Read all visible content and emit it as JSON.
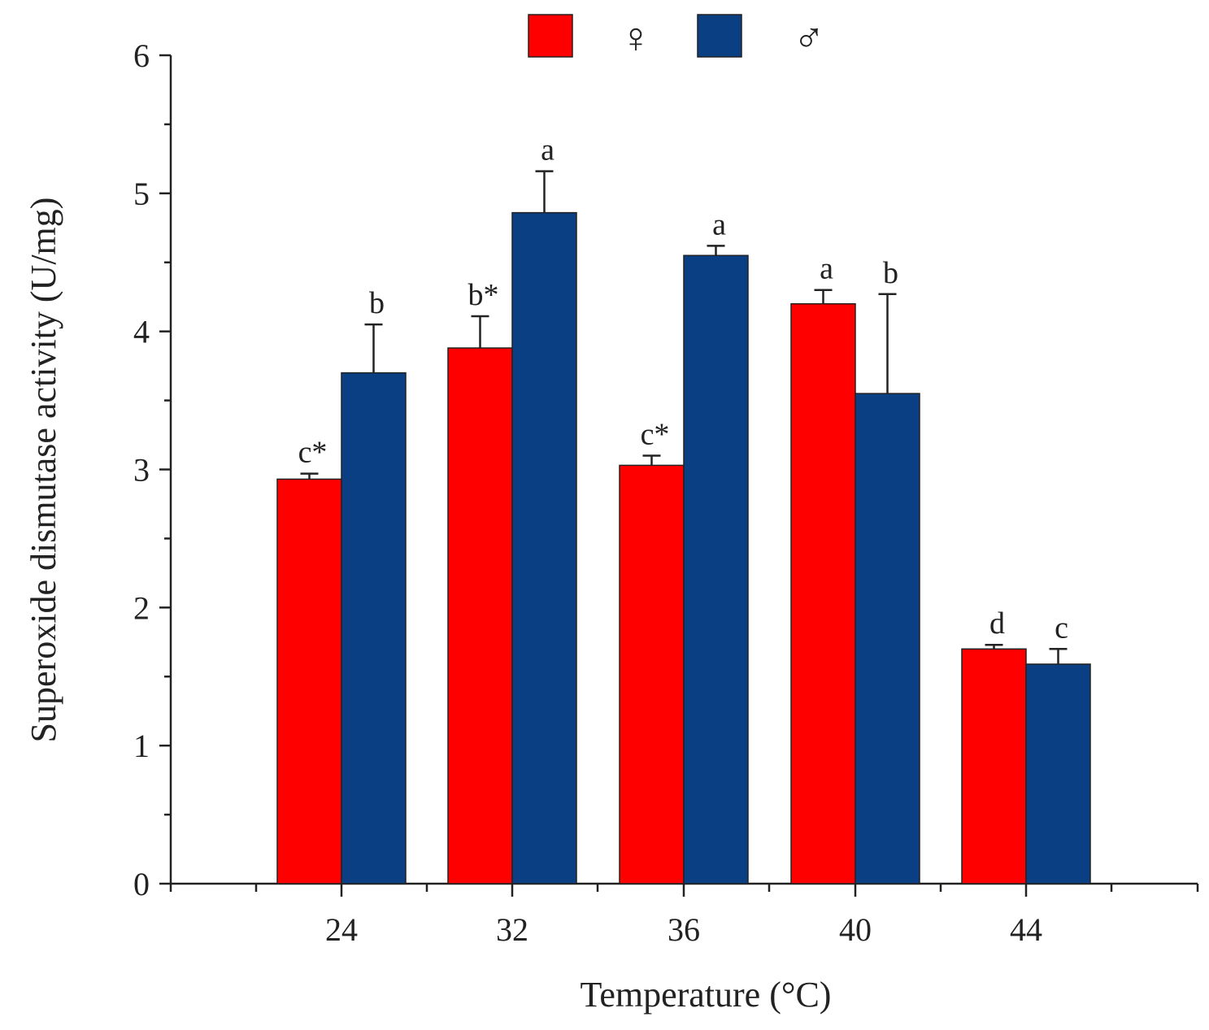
{
  "chart_data": {
    "type": "bar",
    "title": "",
    "xlabel": "Temperature (°C)",
    "ylabel": "Superoxide dismutase activity (U/mg)",
    "categories": [
      "24",
      "32",
      "36",
      "40",
      "44"
    ],
    "ylim": [
      0,
      6
    ],
    "yticks": [
      "0",
      "1",
      "2",
      "3",
      "4",
      "5",
      "6"
    ],
    "legend_position": "top",
    "series": [
      {
        "name": "♀",
        "color": "#ff0000",
        "values": [
          2.93,
          3.88,
          3.03,
          4.2,
          1.7
        ],
        "errors": [
          0.04,
          0.23,
          0.07,
          0.1,
          0.03
        ],
        "significance": [
          "c*",
          "b*",
          "c*",
          "a",
          "d"
        ]
      },
      {
        "name": "♂",
        "color": "#0b3f83",
        "values": [
          3.7,
          4.86,
          4.55,
          3.55,
          1.59
        ],
        "errors": [
          0.35,
          0.3,
          0.07,
          0.72,
          0.11
        ],
        "significance": [
          "b",
          "a",
          "a",
          "b",
          "c"
        ]
      }
    ]
  }
}
